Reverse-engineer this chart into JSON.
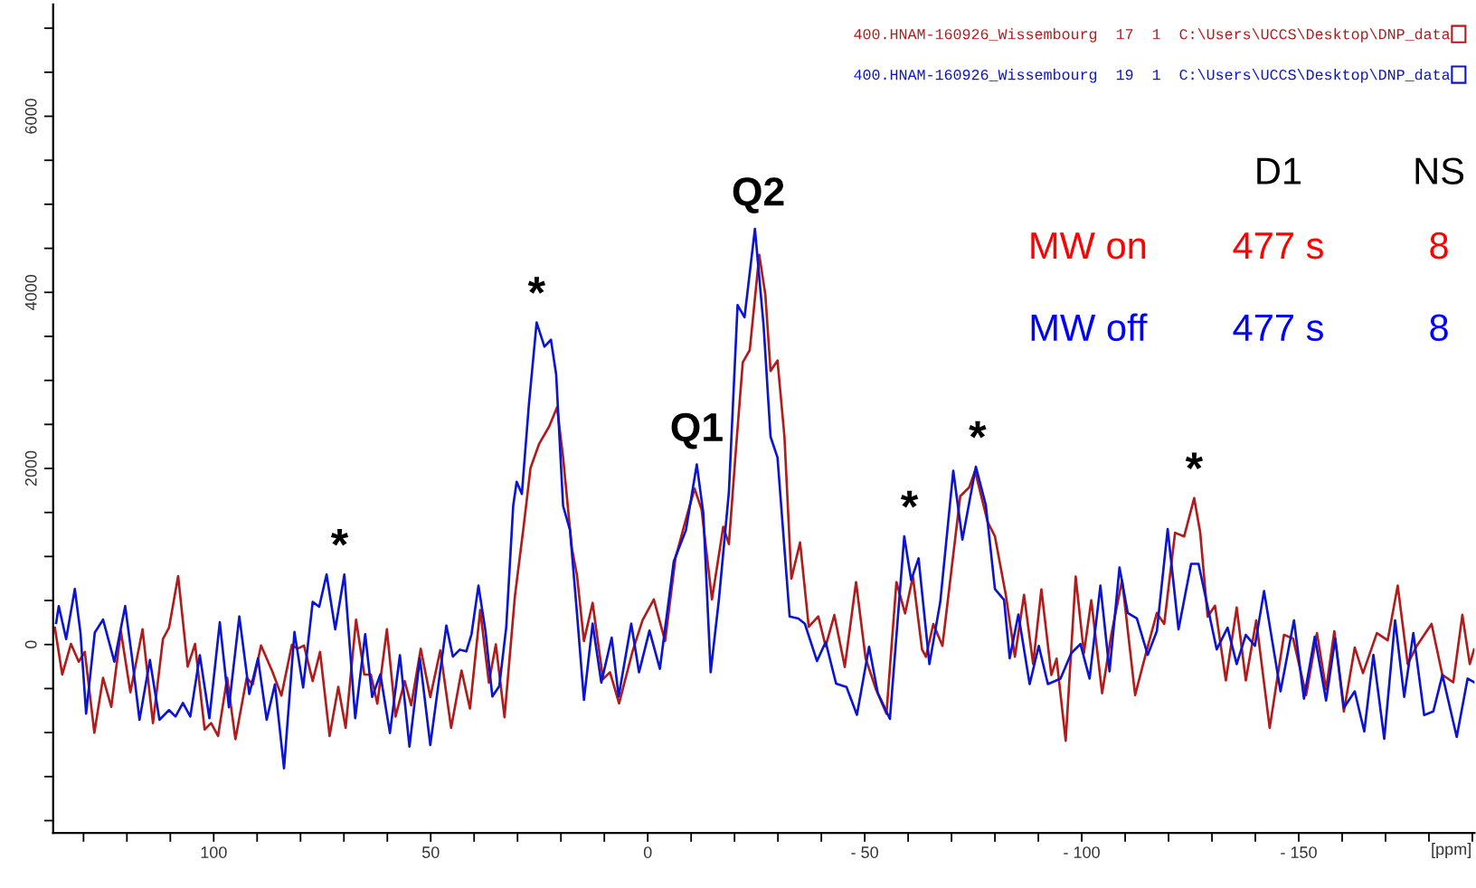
{
  "chart_data": {
    "type": "line",
    "xlim": [
      137,
      -190.5
    ],
    "ylim": [
      -2140,
      7270
    ],
    "xlabel": "[ppm]",
    "legend": "top right",
    "grid": false,
    "xticks": [
      {
        "value": 130,
        "label": null
      },
      {
        "value": 120,
        "label": null
      },
      {
        "value": 110,
        "label": null
      },
      100,
      {
        "value": 90,
        "label": null
      },
      {
        "value": 80,
        "label": null
      },
      {
        "value": 70,
        "label": null
      },
      {
        "value": 60,
        "label": null
      },
      50,
      {
        "value": 40,
        "label": null
      },
      {
        "value": 30,
        "label": null
      },
      {
        "value": 20,
        "label": null
      },
      {
        "value": 10,
        "label": null
      },
      0,
      {
        "value": -10,
        "label": null
      },
      {
        "value": -20,
        "label": null
      },
      {
        "value": -30,
        "label": null
      },
      {
        "value": -40,
        "label": null
      },
      {
        "value": -50,
        "label": "- 50"
      },
      {
        "value": -60,
        "label": null
      },
      {
        "value": -70,
        "label": null
      },
      {
        "value": -80,
        "label": null
      },
      {
        "value": -90,
        "label": null
      },
      {
        "value": -100,
        "label": "- 100"
      },
      {
        "value": -110,
        "label": null
      },
      {
        "value": -120,
        "label": null
      },
      {
        "value": -130,
        "label": null
      },
      {
        "value": -140,
        "label": null
      },
      {
        "value": -150,
        "label": "- 150"
      },
      {
        "value": -160,
        "label": null
      },
      {
        "value": -170,
        "label": null
      },
      {
        "value": -180,
        "label": null
      },
      {
        "value": -190,
        "label": null
      }
    ],
    "yticks": [
      {
        "value": -2000,
        "label": null
      },
      {
        "value": -1500,
        "label": null
      },
      {
        "value": -1000,
        "label": null
      },
      {
        "value": -500,
        "label": null
      },
      0,
      {
        "value": 500,
        "label": null
      },
      {
        "value": 1000,
        "label": null
      },
      {
        "value": 1500,
        "label": null
      },
      2000,
      {
        "value": 2500,
        "label": null
      },
      {
        "value": 3000,
        "label": null
      },
      {
        "value": 3500,
        "label": null
      },
      4000,
      {
        "value": 4500,
        "label": null
      },
      {
        "value": 5000,
        "label": null
      },
      {
        "value": 5500,
        "label": null
      },
      6000,
      {
        "value": 6500,
        "label": null
      },
      {
        "value": 7000,
        "label": null
      }
    ],
    "series": [
      {
        "name": "400.HNAM-160926_Wissembourg  17  1  C:\\Users\\UCCS\\Desktop\\DNP_data",
        "color": "#b01c1c",
        "x": [
          136.6,
          134.9,
          132.9,
          131.1,
          129.7,
          127.5,
          125.5,
          123.6,
          121.4,
          119.2,
          116.4,
          114.0,
          111.7,
          110.3,
          108.2,
          106.0,
          104.3,
          102.1,
          100.6,
          99.0,
          96.9,
          95.0,
          92.4,
          91.0,
          89.1,
          86.5,
          84.4,
          82.0,
          80.7,
          79.2,
          77.2,
          75.5,
          73.3,
          71.3,
          69.6,
          67.2,
          65.3,
          63.8,
          62.3,
          60.1,
          58.1,
          56.0,
          54.5,
          52.3,
          50.1,
          47.8,
          45.3,
          42.9,
          40.96,
          38.6,
          36.6,
          35.0,
          33.0,
          30.6,
          28.6,
          27.0,
          25.0,
          22.7,
          20.9,
          19.5,
          17.5,
          16.3,
          14.7,
          12.7,
          10.3,
          8.7,
          6.6,
          3.5,
          1.2,
          -1.4,
          -4.0,
          -6.4,
          -9.2,
          -10.8,
          -12.4,
          -14.8,
          -17.4,
          -18.7,
          -20.3,
          -21.9,
          -23.5,
          -25.7,
          -27.1,
          -28.3,
          -29.9,
          -31.5,
          -33.1,
          -35.1,
          -37.1,
          -39.3,
          -41.0,
          -43.0,
          -45.4,
          -48.0,
          -50.2,
          -52.6,
          -55.0,
          -57.3,
          -59.3,
          -61.1,
          -63.2,
          -64.1,
          -65.8,
          -67.9,
          -70.0,
          -72.0,
          -74.1,
          -75.4,
          -78.3,
          -80.0,
          -82.5,
          -84.6,
          -86.7,
          -88.8,
          -90.7,
          -93.0,
          -94.2,
          -96.3,
          -98.6,
          -100.5,
          -102.2,
          -104.7,
          -106.8,
          -109.3,
          -112.3,
          -114.8,
          -117.3,
          -119.0,
          -121.5,
          -123.6,
          -125.9,
          -127.3,
          -129.0,
          -130.7,
          -133.2,
          -135.7,
          -137.8,
          -140.2,
          -143.3,
          -146.6,
          -148.7,
          -151.7,
          -154.2,
          -156.3,
          -158.2,
          -160.4,
          -162.9,
          -164.8,
          -168.0,
          -170.5,
          -172.8,
          -175.1,
          -177.2,
          -180.6,
          -183.1,
          -185.6,
          -187.7,
          -189.4,
          -190.4
        ],
        "values": [
          191,
          -341,
          7,
          -195,
          -84,
          -1002,
          -378,
          -708,
          154,
          -543,
          173,
          -892,
          62,
          191,
          778,
          -250,
          7,
          -965,
          -892,
          -1038,
          -378,
          -1075,
          -378,
          -452,
          -11,
          -305,
          -580,
          -4,
          -48,
          -11,
          -415,
          -84,
          -1038,
          -481,
          -947,
          283,
          -341,
          -341,
          -672,
          173,
          -818,
          -415,
          -690,
          -48,
          -598,
          -66,
          -947,
          -295,
          -727,
          393,
          -432,
          1,
          -826,
          551,
          1338,
          2006,
          2282,
          2478,
          2694,
          2124,
          1102,
          787,
          40,
          473,
          -393,
          -314,
          -668,
          -78,
          276,
          512,
          40,
          984,
          1495,
          1771,
          1535,
          512,
          1338,
          1141,
          2203,
          3206,
          3343,
          4425,
          3973,
          3108,
          3226,
          2360,
          747,
          1160,
          201,
          319,
          -19,
          335,
          -255,
          709,
          -157,
          -511,
          -786,
          709,
          354,
          772,
          -56,
          -139,
          234,
          -15,
          855,
          1684,
          1787,
          1974,
          1394,
          1228,
          565,
          -139,
          565,
          -222,
          627,
          -346,
          -160,
          -1092,
          772,
          -98,
          503,
          -553,
          110,
          731,
          -574,
          -98,
          358,
          234,
          1270,
          1228,
          1663,
          1270,
          317,
          441,
          -408,
          420,
          -408,
          275,
          -947,
          110,
          68,
          -574,
          130,
          -511,
          151,
          -760,
          -35,
          -325,
          130,
          48,
          669,
          -222,
          -15,
          234,
          -346,
          -429,
          337,
          -222,
          -56
        ]
      },
      {
        "name": "400.HNAM-160926_Wissembourg  19  1  C:\\Users\\UCCS\\Desktop\\DNP_data",
        "color": "#0a14d2",
        "x": [
          136.3,
          135.7,
          134.0,
          132.0,
          130.7,
          129.4,
          127.4,
          125.5,
          122.9,
          120.4,
          118.8,
          117.1,
          114.7,
          112.5,
          110.3,
          108.8,
          107.1,
          105.4,
          103.2,
          101.0,
          98.6,
          96.5,
          94.1,
          91.8,
          89.8,
          87.8,
          85.9,
          83.8,
          81.4,
          79.4,
          77.2,
          75.7,
          74.0,
          72.0,
          69.9,
          67.4,
          65.1,
          63.5,
          61.6,
          59.4,
          57.1,
          54.9,
          52.5,
          50.1,
          46.4,
          44.9,
          43.3,
          41.8,
          40.6,
          39.0,
          37.4,
          35.8,
          34.2,
          32.6,
          31.0,
          30.2,
          29.0,
          27.4,
          25.6,
          23.8,
          22.3,
          21.1,
          19.5,
          17.9,
          16.3,
          14.7,
          12.7,
          10.7,
          8.3,
          6.7,
          3.8,
          2.0,
          -0.4,
          -2.8,
          -6.0,
          -8.8,
          -11.3,
          -12.8,
          -14.5,
          -16.4,
          -18.7,
          -20.7,
          -22.3,
          -24.7,
          -26.7,
          -28.3,
          -29.9,
          -32.7,
          -34.7,
          -36.2,
          -39.0,
          -41.0,
          -43.4,
          -45.8,
          -48.2,
          -51.0,
          -53.0,
          -55.8,
          -59.1,
          -60.7,
          -62.4,
          -64.9,
          -67.4,
          -70.4,
          -72.5,
          -75.6,
          -77.9,
          -80.0,
          -82.1,
          -83.4,
          -85.4,
          -88.0,
          -90.1,
          -92.2,
          -95.1,
          -97.6,
          -99.7,
          -101.8,
          -104.3,
          -106.4,
          -108.7,
          -110.6,
          -112.7,
          -115.2,
          -117.3,
          -119.8,
          -122.3,
          -125.2,
          -126.9,
          -128.6,
          -131.1,
          -133.6,
          -135.7,
          -137.8,
          -139.9,
          -142.0,
          -145.8,
          -148.9,
          -151.2,
          -153.7,
          -156.3,
          -158.4,
          -160.4,
          -162.9,
          -165.1,
          -167.2,
          -169.7,
          -172.2,
          -174.3,
          -176.4,
          -178.9,
          -181.0,
          -183.1,
          -186.4,
          -188.9,
          -190.4
        ],
        "values": [
          246,
          437,
          62,
          631,
          132,
          -785,
          136,
          283,
          -194,
          437,
          -158,
          -855,
          -176,
          -855,
          -745,
          -818,
          -664,
          -818,
          -121,
          -837,
          253,
          -712,
          319,
          -562,
          -158,
          -855,
          -452,
          -1405,
          143,
          -488,
          484,
          429,
          796,
          172,
          796,
          -837,
          117,
          -595,
          -339,
          -1005,
          -121,
          -1160,
          -158,
          -1141,
          216,
          -137,
          -58,
          -78,
          118,
          669,
          158,
          -590,
          -472,
          197,
          1574,
          1849,
          1711,
          2714,
          3658,
          3383,
          3461,
          3068,
          1574,
          1298,
          354,
          -629,
          237,
          -433,
          79,
          -590,
          237,
          -315,
          158,
          -275,
          944,
          1298,
          2045,
          1495,
          -315,
          511,
          1731,
          3855,
          3717,
          4721,
          3619,
          2360,
          2124,
          318,
          295,
          236,
          -188,
          28,
          -444,
          -483,
          -798,
          -26,
          -550,
          -845,
          1228,
          731,
          979,
          -222,
          482,
          1974,
          1191,
          2019,
          1584,
          631,
          507,
          -156,
          341,
          -449,
          -16,
          -449,
          -387,
          -98,
          5,
          -387,
          669,
          -304,
          876,
          358,
          296,
          -118,
          151,
          1311,
          172,
          917,
          917,
          524,
          -56,
          192,
          -222,
          110,
          -14,
          607,
          -532,
          275,
          -615,
          89,
          -636,
          68,
          -718,
          -532,
          -988,
          -118,
          -1071,
          275,
          -594,
          130,
          -802,
          -760,
          -346,
          -1050,
          -387,
          -428
        ]
      }
    ],
    "annotations": [
      {
        "text": "*",
        "x": 71.0,
        "y": 796
      },
      {
        "text": "*",
        "x": 25.6,
        "y": 3658
      },
      {
        "text": "Q1",
        "x": -11.3,
        "y": 2045
      },
      {
        "text": "Q2",
        "x": -25.5,
        "y": 4721
      },
      {
        "text": "*",
        "x": -60.3,
        "y": 1228
      },
      {
        "text": "*",
        "x": -76.0,
        "y": 2019
      },
      {
        "text": "*",
        "x": -125.9,
        "y": 1663
      },
      "D1",
      "NS",
      "MW on",
      "477 s",
      "8",
      "MW off",
      "477 s",
      "8"
    ]
  }
}
